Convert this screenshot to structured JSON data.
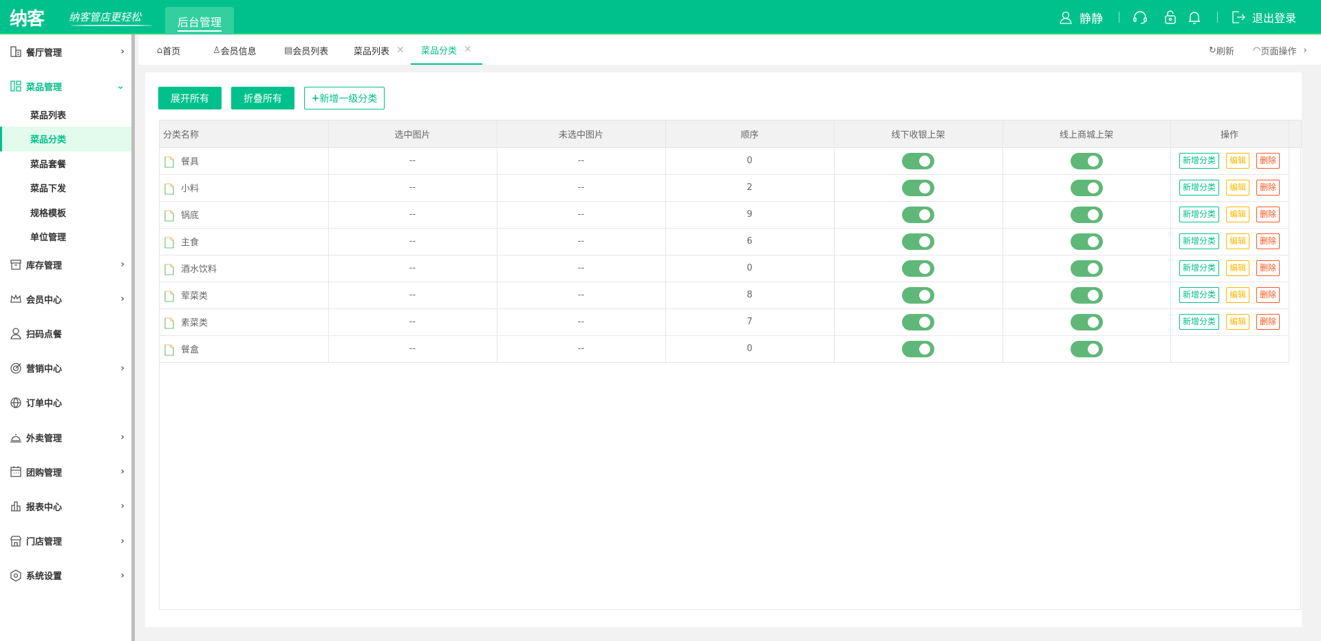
{
  "header": {
    "logo": "纳客",
    "slogan": "纳客管店更轻松",
    "admin_tab": "后台管理",
    "user": "静静",
    "logout": "退出登录"
  },
  "colors": {
    "brand": "#00c18c",
    "toggle_on": "#5fb878",
    "edit": "#ffb800",
    "delete": "#ff5722"
  },
  "sidebar": {
    "top": [
      {
        "label": "餐厅管理",
        "icon": "building-icon"
      }
    ],
    "open": {
      "label": "菜品管理",
      "icon": "layout-icon",
      "items": [
        "菜品列表",
        "菜品分类",
        "菜品套餐",
        "菜品下发",
        "规格模板",
        "单位管理"
      ],
      "active": 1
    },
    "rest": [
      {
        "label": "库存管理",
        "icon": "archive-icon",
        "chev": true
      },
      {
        "label": "会员中心",
        "icon": "crown-icon",
        "chev": true
      },
      {
        "label": "扫码点餐",
        "icon": "user-icon",
        "chev": false
      },
      {
        "label": "营销中心",
        "icon": "target-icon",
        "chev": true
      },
      {
        "label": "订单中心",
        "icon": "globe-icon",
        "chev": false
      },
      {
        "label": "外卖管理",
        "icon": "bell-dome-icon",
        "chev": true
      },
      {
        "label": "团购管理",
        "icon": "calendar-icon",
        "chev": true
      },
      {
        "label": "报表中心",
        "icon": "bar-chart-icon",
        "chev": true
      },
      {
        "label": "门店管理",
        "icon": "store-icon",
        "chev": true
      },
      {
        "label": "系统设置",
        "icon": "gear-icon",
        "chev": true
      }
    ]
  },
  "tabs": [
    {
      "label": "首页"
    },
    {
      "label": "会员信息"
    },
    {
      "label": "会员列表"
    },
    {
      "label": "菜品列表",
      "closable": true
    },
    {
      "label": "菜品分类",
      "closable": true,
      "active": true
    }
  ],
  "tab_actions": {
    "refresh": "刷新",
    "page_ops": "页面操作"
  },
  "toolbar": {
    "expand": "展开所有",
    "collapse": "折叠所有",
    "add": "新增一级分类"
  },
  "table": {
    "columns": [
      "分类名称",
      "选中图片",
      "未选中图片",
      "顺序",
      "线下收银上架",
      "线上商城上架",
      "操作"
    ],
    "actions": {
      "add": "新增分类",
      "edit": "编辑",
      "delete": "删除"
    },
    "rows": [
      {
        "name": "餐具",
        "sel": "--",
        "unsel": "--",
        "order": "0",
        "offline": true,
        "online": true,
        "actions": true
      },
      {
        "name": "小料",
        "sel": "--",
        "unsel": "--",
        "order": "2",
        "offline": true,
        "online": true,
        "actions": true
      },
      {
        "name": "锅底",
        "sel": "--",
        "unsel": "--",
        "order": "9",
        "offline": true,
        "online": true,
        "actions": true
      },
      {
        "name": "主食",
        "sel": "--",
        "unsel": "--",
        "order": "6",
        "offline": true,
        "online": true,
        "actions": true
      },
      {
        "name": "酒水饮料",
        "sel": "--",
        "unsel": "--",
        "order": "0",
        "offline": true,
        "online": true,
        "actions": true
      },
      {
        "name": "荤菜类",
        "sel": "--",
        "unsel": "--",
        "order": "8",
        "offline": true,
        "online": true,
        "actions": true
      },
      {
        "name": "素菜类",
        "sel": "--",
        "unsel": "--",
        "order": "7",
        "offline": true,
        "online": true,
        "actions": true
      },
      {
        "name": "餐盒",
        "sel": "--",
        "unsel": "--",
        "order": "0",
        "offline": true,
        "online": true,
        "actions": false
      }
    ]
  }
}
